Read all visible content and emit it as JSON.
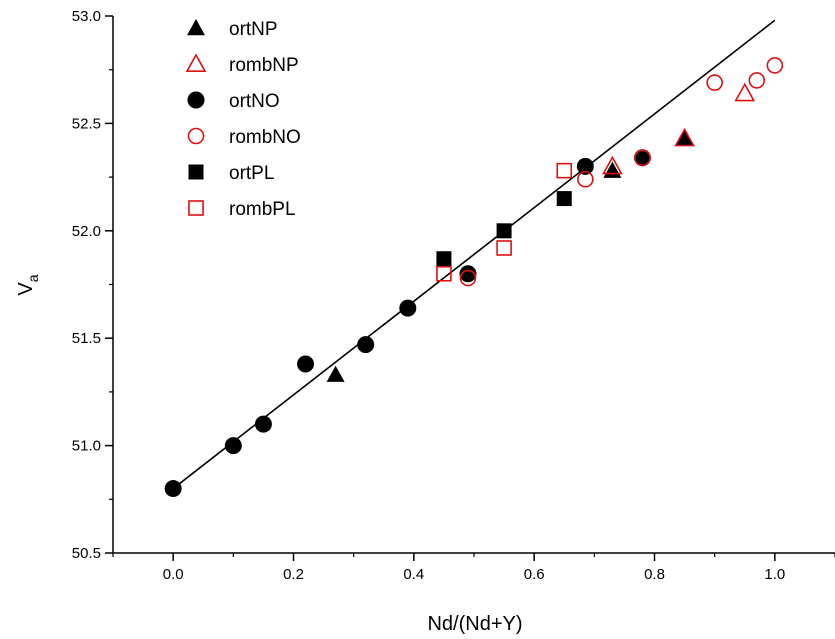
{
  "chart_data": {
    "type": "scatter",
    "title": "",
    "xlabel": "Nd/(Nd+Y)",
    "ylabel": "V",
    "ylabel_sub": "a",
    "xlim": [
      -0.1,
      1.1
    ],
    "ylim": [
      50.5,
      53.0
    ],
    "x_ticks": [
      0.0,
      0.2,
      0.4,
      0.6,
      0.8,
      1.0
    ],
    "x_tick_labels": [
      "0.0",
      "0.2",
      "0.4",
      "0.6",
      "0.8",
      "1.0"
    ],
    "y_ticks": [
      50.5,
      51.0,
      51.5,
      52.0,
      52.5,
      53.0
    ],
    "y_tick_labels": [
      "50.5",
      "51.0",
      "51.5",
      "52.0",
      "52.5",
      "53.0"
    ],
    "grid": false,
    "legend_position": "top-left",
    "colors": {
      "black": "#000000",
      "red": "#e01010"
    },
    "series": [
      {
        "name": "ortNP",
        "marker": "triangle",
        "filled": true,
        "color": "#000000",
        "points": [
          [
            0.27,
            51.33
          ],
          [
            0.73,
            52.28
          ],
          [
            0.85,
            52.43
          ]
        ]
      },
      {
        "name": "rombNP",
        "marker": "triangle",
        "filled": false,
        "color": "#e01010",
        "points": [
          [
            0.73,
            52.3
          ],
          [
            0.85,
            52.43
          ],
          [
            0.95,
            52.64
          ]
        ]
      },
      {
        "name": "ortNO",
        "marker": "circle",
        "filled": true,
        "color": "#000000",
        "points": [
          [
            0.0,
            50.8
          ],
          [
            0.1,
            51.0
          ],
          [
            0.15,
            51.1
          ],
          [
            0.22,
            51.38
          ],
          [
            0.32,
            51.47
          ],
          [
            0.39,
            51.64
          ],
          [
            0.49,
            51.8
          ],
          [
            0.685,
            52.3
          ],
          [
            0.78,
            52.34
          ]
        ]
      },
      {
        "name": "rombNO",
        "marker": "circle",
        "filled": false,
        "color": "#e01010",
        "points": [
          [
            0.49,
            51.78
          ],
          [
            0.685,
            52.24
          ],
          [
            0.78,
            52.34
          ],
          [
            0.9,
            52.69
          ],
          [
            0.97,
            52.7
          ],
          [
            1.0,
            52.77
          ]
        ]
      },
      {
        "name": "ortPL",
        "marker": "square",
        "filled": true,
        "color": "#000000",
        "points": [
          [
            0.45,
            51.87
          ],
          [
            0.55,
            52.0
          ],
          [
            0.65,
            52.15
          ]
        ]
      },
      {
        "name": "rombPL",
        "marker": "square",
        "filled": false,
        "color": "#e01010",
        "points": [
          [
            0.45,
            51.8
          ],
          [
            0.55,
            51.92
          ],
          [
            0.65,
            52.28
          ]
        ]
      }
    ],
    "fit_line": {
      "x": [
        0.0,
        1.0
      ],
      "y": [
        50.8,
        52.98
      ]
    }
  }
}
